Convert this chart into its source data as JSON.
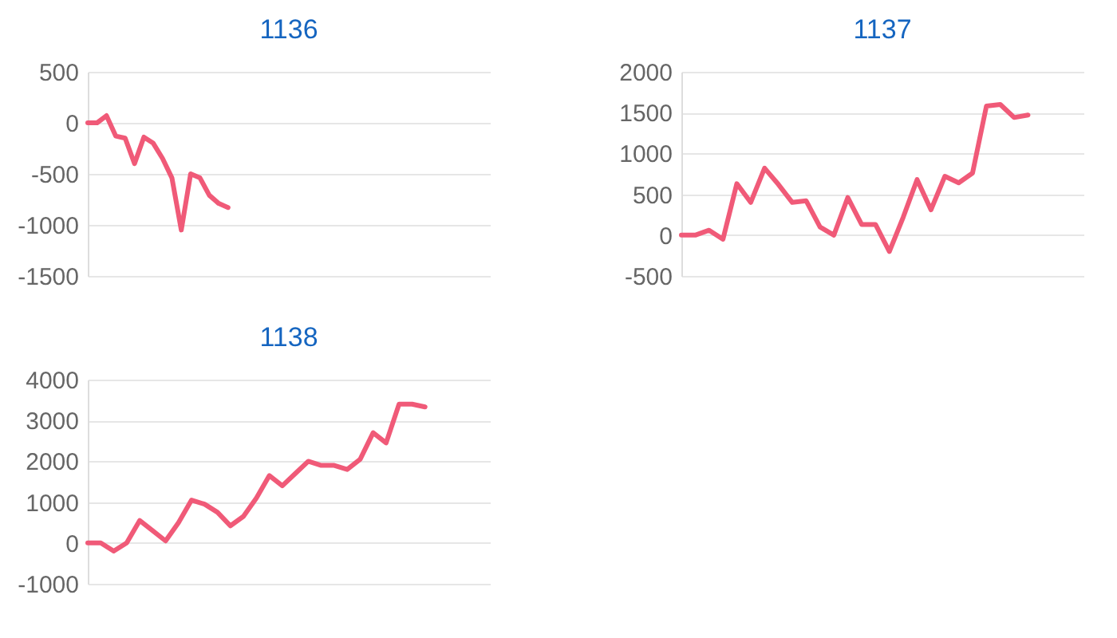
{
  "chart_data": [
    {
      "type": "line",
      "title": "1136",
      "categories": [
        null,
        null,
        null,
        null,
        null,
        null,
        null,
        null,
        null,
        null,
        null,
        null,
        null,
        null,
        null,
        null,
        null,
        null,
        null,
        null,
        null,
        null,
        null,
        null,
        null,
        null,
        null,
        null,
        null,
        null,
        null,
        null,
        null,
        null,
        null,
        null,
        null,
        null,
        null,
        null,
        null,
        null,
        null,
        null
      ],
      "series": [
        {
          "color": "#f05a78",
          "values": [
            0,
            0,
            70,
            -130,
            -150,
            -400,
            -140,
            -200,
            -350,
            -540,
            -1050,
            -500,
            -540,
            -710,
            -790,
            -830,
            null,
            null,
            null,
            null,
            null,
            null,
            null,
            null,
            null,
            null,
            null,
            null,
            null,
            null,
            null,
            null,
            null,
            null,
            null,
            null,
            null,
            null,
            null,
            null,
            null,
            null,
            null,
            null
          ]
        }
      ],
      "ylim": [
        -1500,
        500
      ],
      "yticks": [
        -1500,
        -1000,
        -500,
        0,
        500
      ],
      "grid": "y",
      "tick_labels": "y"
    },
    {
      "type": "line",
      "title": "1137",
      "categories": [
        null,
        null,
        null,
        null,
        null,
        null,
        null,
        null,
        null,
        null,
        null,
        null,
        null,
        null,
        null,
        null,
        null,
        null,
        null,
        null,
        null,
        null,
        null,
        null,
        null,
        null,
        null,
        null,
        null,
        null
      ],
      "series": [
        {
          "color": "#f05a78",
          "values": [
            0,
            0,
            60,
            -50,
            630,
            400,
            820,
            620,
            400,
            420,
            100,
            0,
            460,
            130,
            130,
            -200,
            220,
            680,
            310,
            720,
            640,
            760,
            1580,
            1600,
            1440,
            1470,
            null,
            null,
            null,
            null
          ]
        }
      ],
      "ylim": [
        -500,
        2000
      ],
      "yticks": [
        -500,
        0,
        500,
        1000,
        1500,
        2000
      ],
      "grid": "y",
      "tick_labels": "y"
    },
    {
      "type": "line",
      "title": "1138",
      "categories": [
        null,
        null,
        null,
        null,
        null,
        null,
        null,
        null,
        null,
        null,
        null,
        null,
        null,
        null,
        null,
        null,
        null,
        null,
        null,
        null,
        null,
        null,
        null,
        null,
        null,
        null,
        null,
        null,
        null,
        null,
        null,
        null
      ],
      "series": [
        {
          "color": "#f05a78",
          "values": [
            0,
            0,
            -200,
            0,
            550,
            300,
            50,
            500,
            1050,
            950,
            750,
            420,
            650,
            1100,
            1650,
            1400,
            1700,
            2000,
            1900,
            1900,
            1800,
            2050,
            2700,
            2450,
            3400,
            3400,
            3330,
            null,
            null,
            null,
            null,
            null
          ]
        }
      ],
      "ylim": [
        -1000,
        4000
      ],
      "yticks": [
        -1000,
        0,
        1000,
        2000,
        3000,
        4000
      ],
      "grid": "y",
      "tick_labels": "y"
    }
  ]
}
